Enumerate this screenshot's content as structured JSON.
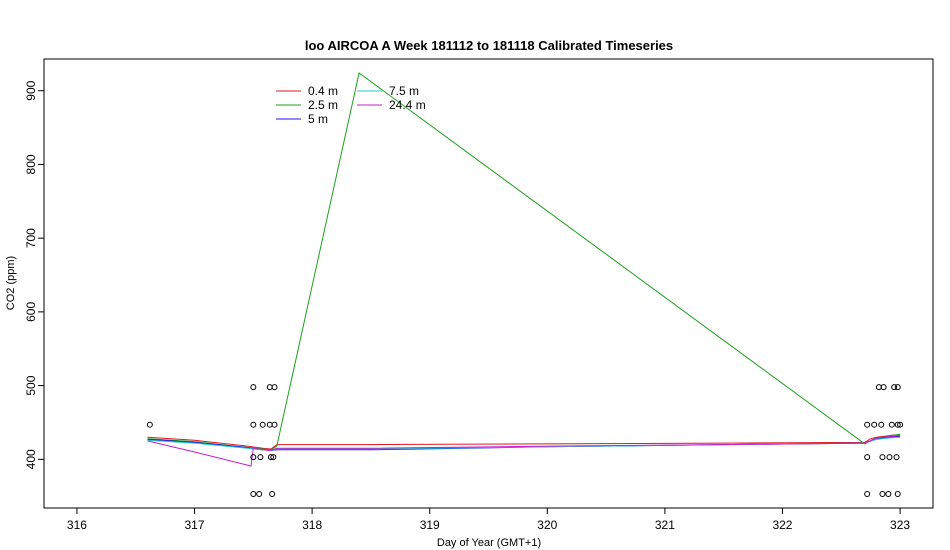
{
  "chart_data": {
    "type": "line",
    "title": "loo AIRCOA A  Week 181112 to 181118  Calibrated Timeseries",
    "xlabel": "Day of Year (GMT+1)",
    "ylabel": "CO2 (ppm)",
    "xlim": [
      315.72,
      323.28
    ],
    "ylim": [
      334,
      943
    ],
    "xticks": [
      316,
      317,
      318,
      319,
      320,
      321,
      322,
      323
    ],
    "yticks": [
      400,
      500,
      600,
      700,
      800,
      900
    ],
    "grid": false,
    "legend_position": "top-left",
    "series": [
      {
        "name": "0.4 m",
        "color": "#e0191f",
        "x": [
          316.6,
          317.0,
          317.45,
          317.58,
          317.65,
          317.7,
          318.5,
          320.0,
          321.5,
          322.7,
          322.75,
          322.8,
          322.85,
          322.9,
          322.95,
          323.0
        ],
        "y": [
          430,
          426,
          418,
          415,
          414,
          420,
          420,
          421,
          422,
          423,
          428,
          430,
          431,
          432,
          433,
          433
        ]
      },
      {
        "name": "2.5 m",
        "color": "#1ca01c",
        "x": [
          316.6,
          317.0,
          317.45,
          317.58,
          317.65,
          317.7,
          318.4,
          322.7,
          322.78,
          322.85,
          322.92,
          323.0
        ],
        "y": [
          428,
          424,
          416,
          414,
          413,
          418,
          924,
          421,
          428,
          430,
          432,
          434
        ]
      },
      {
        "name": "5 m",
        "color": "#1a1af0",
        "x": [
          316.6,
          317.0,
          317.45,
          317.58,
          317.65,
          317.7,
          318.5,
          320.0,
          321.5,
          322.7,
          322.8,
          322.9,
          323.0
        ],
        "y": [
          427,
          423,
          416,
          413,
          412,
          413,
          413,
          417,
          420,
          422,
          428,
          430,
          431
        ]
      },
      {
        "name": "7.5 m",
        "color": "#1ec8d8",
        "x": [
          316.6,
          317.0,
          317.45,
          317.58,
          317.65,
          317.7,
          318.5,
          320.0,
          321.5,
          322.7,
          322.8,
          322.9,
          323.0
        ],
        "y": [
          426,
          422,
          415,
          413,
          412,
          414,
          414,
          417,
          420,
          422,
          427,
          429,
          430
        ]
      },
      {
        "name": "24.4 m",
        "color": "#c81ec8",
        "x": [
          316.6,
          317.0,
          317.48,
          317.5,
          317.58,
          317.65,
          317.7,
          318.5,
          320.0,
          321.5,
          322.7,
          322.8,
          322.9,
          323.0
        ],
        "y": [
          425,
          410,
          391,
          415,
          413,
          412,
          415,
          415,
          418,
          420,
          422,
          429,
          431,
          432
        ]
      }
    ],
    "points": {
      "name": "",
      "color": "#000000",
      "x": [
        316.62,
        317.5,
        317.5,
        317.5,
        317.5,
        317.55,
        317.56,
        317.58,
        317.64,
        317.64,
        317.65,
        317.66,
        317.67,
        317.68,
        317.68,
        322.72,
        322.72,
        322.72,
        322.78,
        322.82,
        322.84,
        322.85,
        322.85,
        322.86,
        322.9,
        322.91,
        322.93,
        322.95,
        322.97,
        322.98,
        322.98,
        322.98,
        323.0
      ],
      "y": [
        447,
        498,
        447,
        403,
        353,
        353,
        403,
        447,
        498,
        447,
        403,
        353,
        403,
        447,
        498,
        353,
        403,
        447,
        447,
        498,
        447,
        403,
        353,
        498,
        353,
        403,
        447,
        498,
        403,
        353,
        447,
        498,
        447
      ]
    }
  }
}
